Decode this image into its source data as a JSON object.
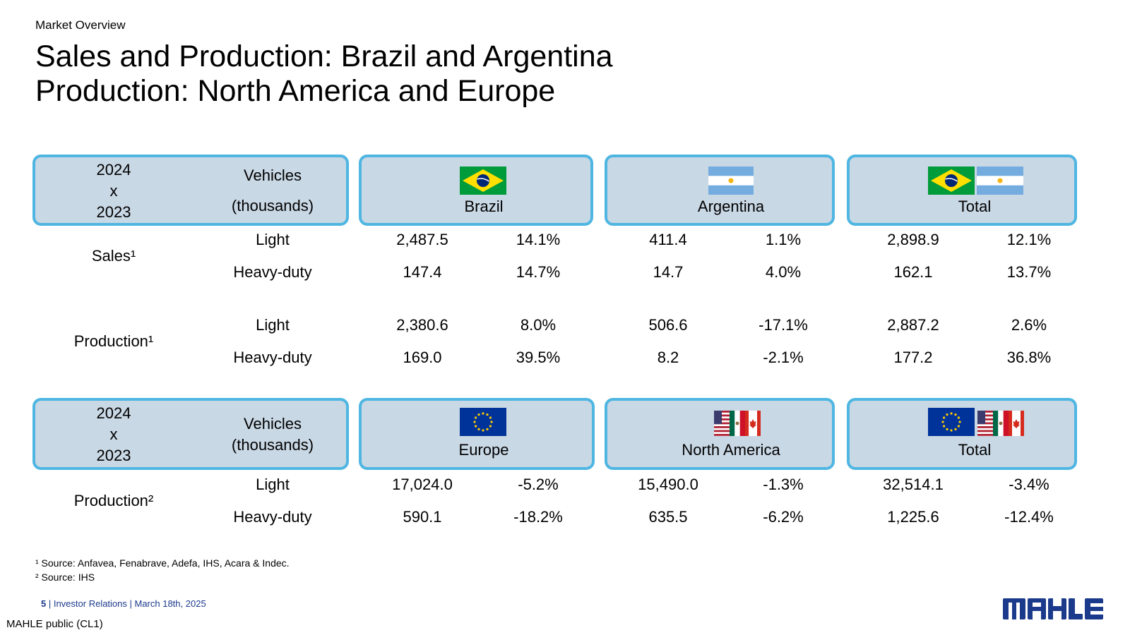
{
  "header": {
    "section": "Market Overview",
    "title_line1": "Sales and Production: Brazil and Argentina",
    "title_line2": "Production: North America and Europe"
  },
  "table1": {
    "year_a": "2024",
    "x": "x",
    "year_b": "2023",
    "vehicles": "Vehicles",
    "units": "(thousands)",
    "regions": [
      {
        "name": "Brazil",
        "flags": [
          "brazil-flag"
        ]
      },
      {
        "name": "Argentina",
        "flags": [
          "argentina-flag"
        ]
      },
      {
        "name": "Total",
        "flags": [
          "brazil-flag",
          "argentina-flag"
        ]
      }
    ],
    "groups": [
      {
        "label": "Sales¹",
        "rows": [
          {
            "type": "Light",
            "values": [
              "2,487.5",
              "14.1%",
              "411.4",
              "1.1%",
              "2,898.9",
              "12.1%"
            ]
          },
          {
            "type": "Heavy-duty",
            "values": [
              "147.4",
              "14.7%",
              "14.7",
              "4.0%",
              "162.1",
              "13.7%"
            ]
          }
        ]
      },
      {
        "label": "Production¹",
        "rows": [
          {
            "type": "Light",
            "values": [
              "2,380.6",
              "8.0%",
              "506.6",
              "-17.1%",
              "2,887.2",
              "2.6%"
            ]
          },
          {
            "type": "Heavy-duty",
            "values": [
              "169.0",
              "39.5%",
              "8.2",
              "-2.1%",
              "177.2",
              "36.8%"
            ]
          }
        ]
      }
    ]
  },
  "table2": {
    "year_a": "2024",
    "x": "x",
    "year_b": "2023",
    "vehicles": "Vehicles",
    "units": "(thousands)",
    "regions": [
      {
        "name": "Europe",
        "flags": [
          "eu-flag"
        ]
      },
      {
        "name": "North America",
        "flags": [
          "us-flag",
          "mexico-flag",
          "canada-flag"
        ]
      },
      {
        "name": "Total",
        "flags": [
          "eu-flag",
          "us-flag",
          "mexico-flag",
          "canada-flag"
        ]
      }
    ],
    "groups": [
      {
        "label": "Production²",
        "rows": [
          {
            "type": "Light",
            "values": [
              "17,024.0",
              "-5.2%",
              "15,490.0",
              "-1.3%",
              "32,514.1",
              "-3.4%"
            ]
          },
          {
            "type": "Heavy-duty",
            "values": [
              "590.1",
              "-18.2%",
              "635.5",
              "-6.2%",
              "1,225.6",
              "-12.4%"
            ]
          }
        ]
      }
    ]
  },
  "footnotes": {
    "note1": "¹ Source: Anfavea, Fenabrave, Adefa, IHS, Acara & Indec.",
    "note2": "² Source: IHS"
  },
  "footer": {
    "page": "5",
    "separator": " | ",
    "text": "Investor Relations | March 18th, 2025",
    "classification": "MAHLE public (CL1)",
    "logo": "MAHLE"
  },
  "colors": {
    "box_fill": "#c9d8e5",
    "box_border": "#4fb6e2",
    "footer_blue": "#1c3a8c",
    "logo_blue": "#1c3a8c"
  }
}
